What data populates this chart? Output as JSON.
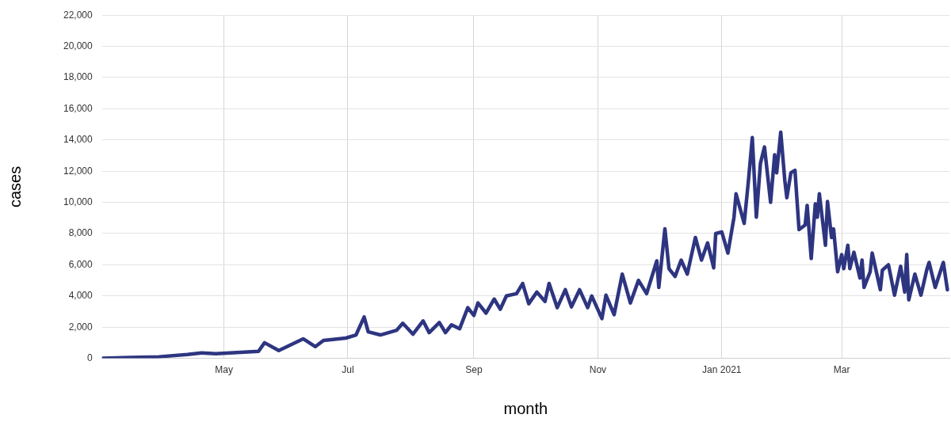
{
  "chart_data": {
    "type": "line",
    "xlabel": "month",
    "ylabel": "cases",
    "xlim": [
      "2020-03-02",
      "2021-04-23"
    ],
    "xticks": [
      {
        "value": "2020-05-01",
        "label": "May"
      },
      {
        "value": "2020-07-01",
        "label": "Jul"
      },
      {
        "value": "2020-09-01",
        "label": "Sep"
      },
      {
        "value": "2020-11-01",
        "label": "Nov"
      },
      {
        "value": "2021-01-01",
        "label": "Jan 2021"
      },
      {
        "value": "2021-03-01",
        "label": "Mar"
      }
    ],
    "ylim": [
      0,
      22000
    ],
    "yticks": [
      {
        "value": 0,
        "label": "0"
      },
      {
        "value": 2000,
        "label": "2,000"
      },
      {
        "value": 4000,
        "label": "4,000"
      },
      {
        "value": 6000,
        "label": "6,000"
      },
      {
        "value": 8000,
        "label": "8,000"
      },
      {
        "value": 10000,
        "label": "10,000"
      },
      {
        "value": 12000,
        "label": "12,000"
      },
      {
        "value": 14000,
        "label": "14,000"
      },
      {
        "value": 16000,
        "label": "16,000"
      },
      {
        "value": 18000,
        "label": "18,000"
      },
      {
        "value": 20000,
        "label": "20,000"
      },
      {
        "value": 22000,
        "label": "22,000"
      }
    ],
    "grid": true,
    "legend": false,
    "marker": "none",
    "line_style": "solid",
    "x": [
      "2020-03-02",
      "2020-03-16",
      "2020-03-30",
      "2020-04-13",
      "2020-04-20",
      "2020-04-27",
      "2020-05-04",
      "2020-05-11",
      "2020-05-18",
      "2020-05-21",
      "2020-05-28",
      "2020-06-09",
      "2020-06-15",
      "2020-06-19",
      "2020-06-30",
      "2020-07-05",
      "2020-07-09",
      "2020-07-11",
      "2020-07-17",
      "2020-07-25",
      "2020-07-28",
      "2020-08-02",
      "2020-08-07",
      "2020-08-10",
      "2020-08-15",
      "2020-08-18",
      "2020-08-21",
      "2020-08-25",
      "2020-08-29",
      "2020-09-01",
      "2020-09-03",
      "2020-09-07",
      "2020-09-11",
      "2020-09-14",
      "2020-09-17",
      "2020-09-22",
      "2020-09-25",
      "2020-09-28",
      "2020-10-02",
      "2020-10-06",
      "2020-10-08",
      "2020-10-12",
      "2020-10-16",
      "2020-10-19",
      "2020-10-23",
      "2020-10-27",
      "2020-10-29",
      "2020-11-03",
      "2020-11-05",
      "2020-11-09",
      "2020-11-13",
      "2020-11-17",
      "2020-11-21",
      "2020-11-25",
      "2020-11-30",
      "2020-12-01",
      "2020-12-04",
      "2020-12-06",
      "2020-12-09",
      "2020-12-12",
      "2020-12-15",
      "2020-12-19",
      "2020-12-22",
      "2020-12-25",
      "2020-12-28",
      "2020-12-29",
      "2021-01-01",
      "2021-01-04",
      "2021-01-07",
      "2021-01-08",
      "2021-01-12",
      "2021-01-14",
      "2021-01-16",
      "2021-01-18",
      "2021-01-20",
      "2021-01-22",
      "2021-01-25",
      "2021-01-27",
      "2021-01-28",
      "2021-01-30",
      "2021-02-01",
      "2021-02-02",
      "2021-02-04",
      "2021-02-06",
      "2021-02-08",
      "2021-02-11",
      "2021-02-12",
      "2021-02-14",
      "2021-02-16",
      "2021-02-17",
      "2021-02-18",
      "2021-02-21",
      "2021-02-22",
      "2021-02-24",
      "2021-02-25",
      "2021-02-27",
      "2021-03-01",
      "2021-03-02",
      "2021-03-04",
      "2021-03-05",
      "2021-03-07",
      "2021-03-10",
      "2021-03-11",
      "2021-03-12",
      "2021-03-15",
      "2021-03-16",
      "2021-03-20",
      "2021-03-21",
      "2021-03-24",
      "2021-03-27",
      "2021-03-30",
      "2021-04-01",
      "2021-04-02",
      "2021-04-03",
      "2021-04-06",
      "2021-04-09",
      "2021-04-12",
      "2021-04-13",
      "2021-04-16",
      "2021-04-20",
      "2021-04-22"
    ],
    "series": [
      {
        "color": "#2e3580",
        "values": [
          0,
          50,
          100,
          250,
          350,
          300,
          350,
          400,
          450,
          1000,
          500,
          1250,
          750,
          1150,
          1300,
          1500,
          2650,
          1700,
          1500,
          1800,
          2250,
          1550,
          2400,
          1650,
          2300,
          1650,
          2150,
          1900,
          3250,
          2750,
          3550,
          2900,
          3800,
          3150,
          4000,
          4150,
          4800,
          3500,
          4250,
          3650,
          4800,
          3250,
          4400,
          3300,
          4400,
          3250,
          4000,
          2550,
          4050,
          2800,
          5400,
          3550,
          5000,
          4150,
          6250,
          4550,
          8300,
          5750,
          5250,
          6300,
          5400,
          7750,
          6300,
          7400,
          5800,
          8000,
          8100,
          6750,
          9050,
          10550,
          8650,
          11250,
          14150,
          9050,
          12500,
          13550,
          10000,
          13050,
          11900,
          14500,
          11400,
          10300,
          11900,
          12050,
          8250,
          8550,
          9800,
          6400,
          9900,
          9050,
          10550,
          7250,
          10050,
          7750,
          8300,
          5550,
          6650,
          5750,
          7250,
          5750,
          6800,
          5150,
          6300,
          4550,
          5550,
          6750,
          4400,
          5650,
          6000,
          4050,
          5900,
          4250,
          6650,
          3750,
          5400,
          4050,
          5750,
          6150,
          4550,
          6150,
          4400
        ]
      }
    ]
  }
}
